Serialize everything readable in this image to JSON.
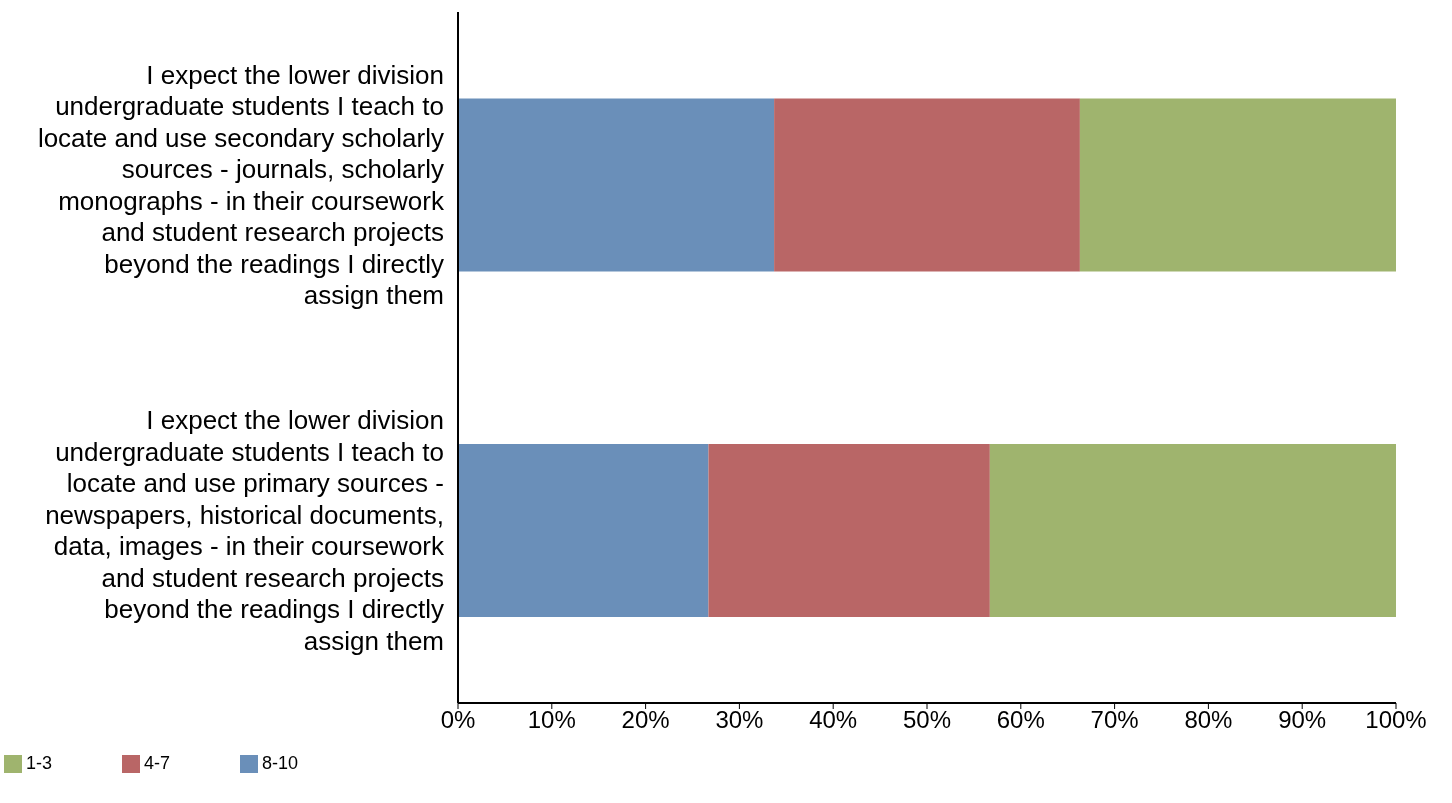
{
  "chart_data": {
    "type": "bar",
    "orientation": "horizontal",
    "stacked": true,
    "categories": [
      "I expect the lower division undergraduate students I teach to locate and use secondary scholarly sources - journals, scholarly monographs - in their coursework and student research projects beyond the readings I directly assign them",
      "I expect the lower division undergraduate students I teach to locate and use primary sources - newspapers, historical documents, data, images - in their coursework and student research projects beyond the readings I directly assign them"
    ],
    "series": [
      {
        "name": "8-10",
        "color": "#6a8fb9",
        "values": [
          33.7,
          26.7
        ]
      },
      {
        "name": "4-7",
        "color": "#b96666",
        "values": [
          32.6,
          30.0
        ]
      },
      {
        "name": "1-3",
        "color": "#9fb46e",
        "values": [
          33.7,
          43.3
        ]
      }
    ],
    "xlim": [
      0,
      100
    ],
    "xticks": [
      {
        "value": 0,
        "label": "0%"
      },
      {
        "value": 10,
        "label": "10%"
      },
      {
        "value": 20,
        "label": "20%"
      },
      {
        "value": 30,
        "label": "30%"
      },
      {
        "value": 40,
        "label": "40%"
      },
      {
        "value": 50,
        "label": "50%"
      },
      {
        "value": 60,
        "label": "60%"
      },
      {
        "value": 70,
        "label": "70%"
      },
      {
        "value": 80,
        "label": "80%"
      },
      {
        "value": 90,
        "label": "90%"
      },
      {
        "value": 100,
        "label": "100%"
      }
    ],
    "grid": false,
    "legend": "bottom left"
  }
}
